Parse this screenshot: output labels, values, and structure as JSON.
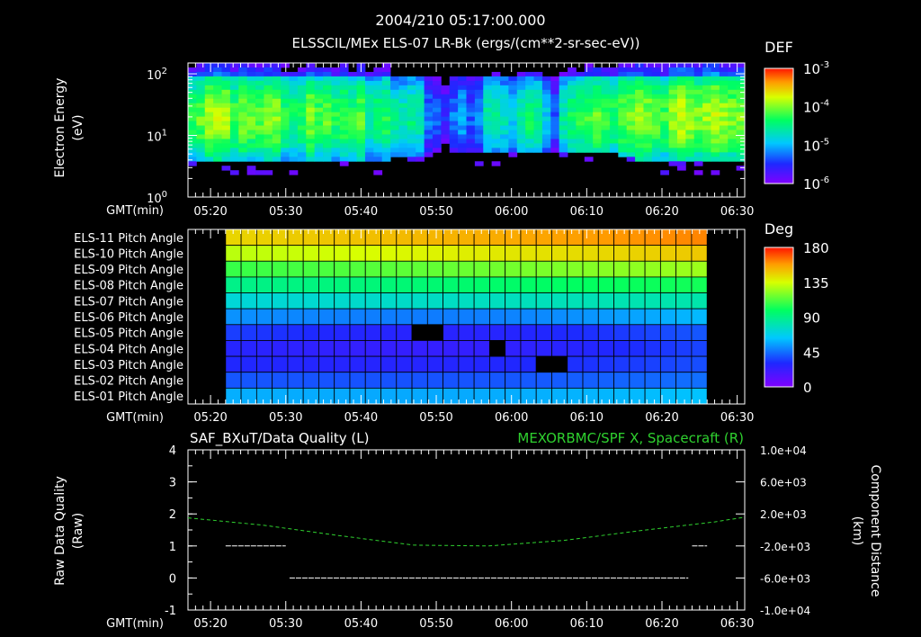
{
  "header": {
    "title": "2004/210 05:17:00.000",
    "subtitle": "ELSSCIL/MEx ELS-07 LR-Bk  (ergs/(cm**2-sr-sec-eV))"
  },
  "time_axis": {
    "label": "GMT(min)",
    "tick_labels": [
      "05:20",
      "05:30",
      "05:40",
      "05:50",
      "06:00",
      "06:10",
      "06:20",
      "06:30"
    ]
  },
  "chart_data": [
    {
      "type": "heatmap",
      "name": "spectrogram",
      "ylabel": [
        "Electron Energy",
        "(eV)"
      ],
      "xrange_min": [
        17,
        91
      ],
      "yscale": "log",
      "ylim": [
        1,
        150
      ],
      "ytick_labels": [
        {
          "base": "10",
          "exp": "2",
          "value": 100
        },
        {
          "base": "10",
          "exp": "1",
          "value": 10
        },
        {
          "base": "10",
          "exp": "0",
          "value": 1
        }
      ],
      "colorbar": {
        "title": "DEF",
        "range_log": [
          -6,
          -3
        ],
        "labels": [
          {
            "base": "10",
            "exp": "-3",
            "value": -3
          },
          {
            "base": "10",
            "exp": "-4",
            "value": -4
          },
          {
            "base": "10",
            "exp": "-5",
            "value": -5
          },
          {
            "base": "10",
            "exp": "-6",
            "value": -6
          }
        ]
      },
      "profile_log_def": [
        -4.3,
        -4.1,
        -3.9,
        -3.85,
        -3.9,
        -4.2,
        -4.0,
        -4.1,
        -4.1,
        -4.0,
        -4.0,
        -4.3,
        -4.4,
        -4.3,
        -4.0,
        -4.2,
        -4.1,
        -4.3,
        -4.2,
        -4.3,
        -4.1,
        -4.5,
        -4.4,
        -4.3,
        -4.6,
        -4.6,
        -4.5,
        -4.6,
        -5.2,
        -5.3,
        -5.5,
        -5.2,
        -5.0,
        -5.3,
        -5.1,
        -4.6,
        -4.6,
        -4.7,
        -4.9,
        -4.6,
        -4.4,
        -4.5,
        -4.9,
        -5.3,
        -4.6,
        -4.4,
        -4.3,
        -4.2,
        -4.1,
        -4.2,
        -4.3,
        -4.1,
        -4.0,
        -3.9,
        -4.0,
        -4.1,
        -4.2,
        -3.9,
        -3.8,
        -3.9,
        -4.0,
        -3.9,
        -3.8,
        -3.9,
        -4.0,
        -4.0
      ],
      "low_energy_cutoff_eV": [
        4,
        4,
        4,
        4,
        4,
        4,
        4,
        4,
        4,
        4,
        4,
        4,
        4,
        4,
        4,
        4,
        4,
        4,
        4,
        4,
        4,
        4,
        4,
        4,
        4.5,
        4.5,
        4.5,
        4.5,
        4.5,
        5,
        5,
        5,
        5,
        5,
        5,
        5,
        5,
        5,
        5,
        5,
        5,
        5,
        5,
        5,
        5,
        5,
        5,
        5,
        5,
        5,
        5,
        4.2,
        4.2,
        4,
        3.5,
        3.5,
        3.6,
        3.6,
        3.6,
        3.6,
        3.6,
        3.6,
        3.6,
        3.6,
        3.6,
        3.6
      ]
    },
    {
      "type": "heatmap",
      "name": "pitch-angle",
      "rows": [
        "ELS-11 Pitch Angle",
        "ELS-10 Pitch Angle",
        "ELS-09 Pitch Angle",
        "ELS-08 Pitch Angle",
        "ELS-07 Pitch Angle",
        "ELS-06 Pitch Angle",
        "ELS-05 Pitch Angle",
        "ELS-04 Pitch Angle",
        "ELS-03 Pitch Angle",
        "ELS-02 Pitch Angle",
        "ELS-01 Pitch Angle"
      ],
      "time_range_min": [
        22,
        86
      ],
      "n_columns": 31,
      "colorbar": {
        "title": "Deg",
        "range": [
          0,
          180
        ],
        "labels": [
          "180",
          "135",
          "90",
          "45",
          "0"
        ]
      },
      "row_start_deg": [
        145,
        130,
        108,
        90,
        72,
        52,
        35,
        28,
        30,
        40,
        58
      ],
      "row_end_deg": [
        162,
        148,
        125,
        102,
        82,
        60,
        40,
        36,
        38,
        45,
        62
      ],
      "row_dip_deg": [
        0,
        0,
        0,
        0,
        0,
        -8,
        -10,
        -8,
        -5,
        -3,
        -3
      ],
      "data_gaps": [
        {
          "row": 6,
          "col_start": 12,
          "col_end": 13
        },
        {
          "row": 7,
          "col_start": 17,
          "col_end": 17
        },
        {
          "row": 8,
          "col_start": 20,
          "col_end": 21
        }
      ]
    },
    {
      "type": "line",
      "name": "quality-and-position",
      "left_title": "SAF_BXuT/Data Quality (L)",
      "right_title": "MEXORBMC/SPF X, Spacecraft (R)",
      "ylabel_left": [
        "Raw Data Quality",
        "(Raw)"
      ],
      "ylabel_right": [
        "Component Distance",
        "(km)"
      ],
      "ylim_left": [
        -1,
        4
      ],
      "ytick_labels_left": [
        "4",
        "3",
        "2",
        "1",
        "0",
        "-1"
      ],
      "ylim_right": [
        -10000,
        10000
      ],
      "ytick_labels_right": [
        "1.0e+04",
        "6.0e+03",
        "2.0e+03",
        "-2.0e+03",
        "-6.0e+03",
        "-1.0e+04"
      ],
      "quality_segments": [
        {
          "x0": 22,
          "x1": 30,
          "value": 1
        },
        {
          "x0": 30.5,
          "x1": 83.5,
          "value": 0
        },
        {
          "x0": 84,
          "x1": 86,
          "value": 1
        }
      ],
      "spacecraft_x_km": {
        "x": [
          17,
          27,
          37,
          47,
          57,
          67,
          77,
          87,
          91
        ],
        "y": [
          1500,
          600,
          -700,
          -1900,
          -2000,
          -1300,
          -100,
          1000,
          1600
        ]
      },
      "colors": {
        "quality": "#ffffff",
        "position": "#2fd12f"
      }
    }
  ]
}
